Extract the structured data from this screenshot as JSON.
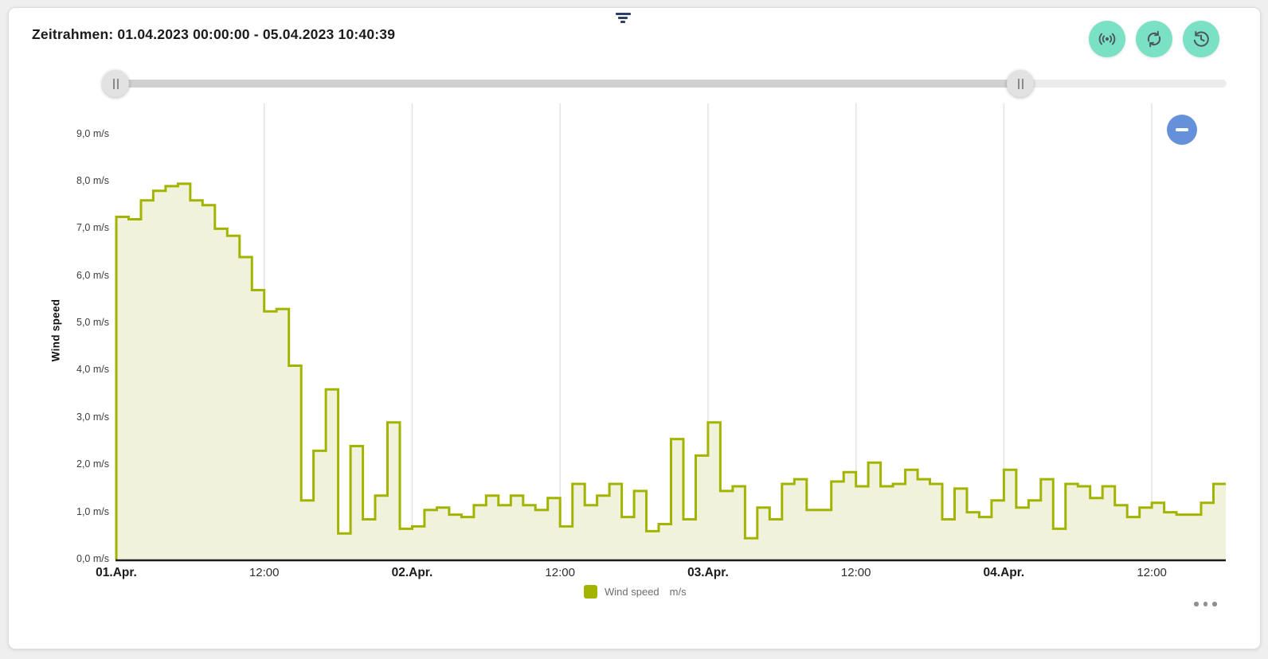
{
  "header": {
    "timeframe": "Zeitrahmen: 01.04.2023 00:00:00 - 05.04.2023 10:40:39"
  },
  "toolbar": {
    "buttons": [
      {
        "icon": "live-icon"
      },
      {
        "icon": "refresh-icon"
      },
      {
        "icon": "history-icon"
      }
    ]
  },
  "slider": {
    "handle_glyph": "||",
    "range_start_pct": 0,
    "range_end_pct": 81.4
  },
  "colors": {
    "accent_teal": "#7be1c4",
    "series_olive": "#a3b400",
    "series_fill": "#f0f2dc",
    "zoom_out_blue": "#6590da",
    "filter_navy": "#2e3f66"
  },
  "chart_data": {
    "type": "area",
    "subtype": "step",
    "ylabel": "Wind speed",
    "ylim": [
      0,
      9.65
    ],
    "grid": "vertical",
    "legend_position": "bottom-center",
    "interval_hours": 1,
    "x_total_hours": 90,
    "y_ticks": [
      {
        "value": 0,
        "label": "0,0 m/s"
      },
      {
        "value": 1,
        "label": "1,0 m/s"
      },
      {
        "value": 2,
        "label": "2,0 m/s"
      },
      {
        "value": 3,
        "label": "3,0 m/s"
      },
      {
        "value": 4,
        "label": "4,0 m/s"
      },
      {
        "value": 5,
        "label": "5,0 m/s"
      },
      {
        "value": 6,
        "label": "6,0 m/s"
      },
      {
        "value": 7,
        "label": "7,0 m/s"
      },
      {
        "value": 8,
        "label": "8,0 m/s"
      },
      {
        "value": 9,
        "label": "9,0 m/s"
      }
    ],
    "x_ticks": [
      {
        "hour": 0,
        "label": "01.Apr.",
        "bold": true
      },
      {
        "hour": 12,
        "label": "12:00",
        "bold": false
      },
      {
        "hour": 24,
        "label": "02.Apr.",
        "bold": true
      },
      {
        "hour": 36,
        "label": "12:00",
        "bold": false
      },
      {
        "hour": 48,
        "label": "03.Apr.",
        "bold": true
      },
      {
        "hour": 60,
        "label": "12:00",
        "bold": false
      },
      {
        "hour": 72,
        "label": "04.Apr.",
        "bold": true
      },
      {
        "hour": 84,
        "label": "12:00",
        "bold": false
      }
    ],
    "series": [
      {
        "name": "Wind speed",
        "unit": "m/s",
        "color": "#a3b400",
        "fill": "#f0f2dc",
        "values": [
          7.25,
          7.2,
          7.6,
          7.8,
          7.9,
          7.95,
          7.6,
          7.5,
          7.0,
          6.85,
          6.4,
          5.7,
          5.25,
          5.3,
          4.1,
          1.25,
          2.3,
          3.6,
          0.55,
          2.4,
          0.85,
          1.35,
          2.9,
          0.65,
          0.7,
          1.05,
          1.1,
          0.95,
          0.9,
          1.15,
          1.35,
          1.15,
          1.35,
          1.15,
          1.05,
          1.3,
          0.7,
          1.6,
          1.15,
          1.35,
          1.6,
          0.9,
          1.45,
          0.6,
          0.75,
          2.55,
          0.85,
          2.2,
          2.9,
          1.45,
          1.55,
          0.45,
          1.1,
          0.85,
          1.6,
          1.7,
          1.05,
          1.05,
          1.65,
          1.85,
          1.55,
          2.05,
          1.55,
          1.6,
          1.9,
          1.7,
          1.6,
          0.85,
          1.5,
          1.0,
          0.9,
          1.25,
          1.9,
          1.1,
          1.25,
          1.7,
          0.65,
          1.6,
          1.55,
          1.3,
          1.55,
          1.15,
          0.9,
          1.1,
          1.2,
          1.0,
          0.95,
          0.95,
          1.2,
          1.6
        ]
      }
    ]
  }
}
